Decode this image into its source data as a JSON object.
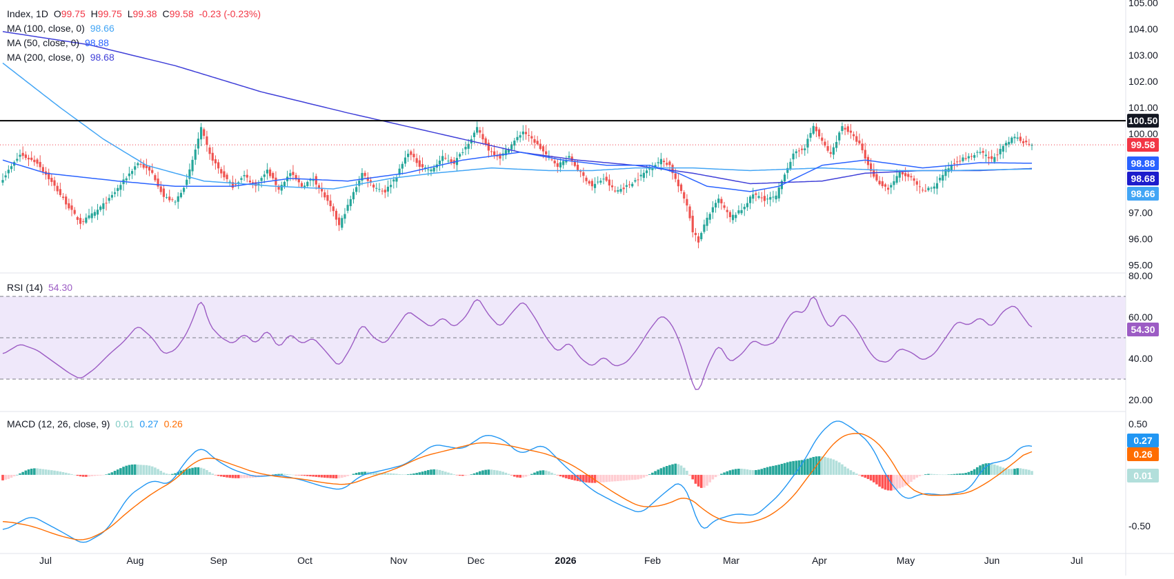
{
  "colors": {
    "up": "#26a69a",
    "down": "#ef5350",
    "ma100": "#42a5f5",
    "ma50": "#2962ff",
    "ma200": "#3f3fd8",
    "rsi": "#9c5cc4",
    "rsi_band": "#efe8fa",
    "macd": "#2196f3",
    "signal": "#ff6d00",
    "resistance": "#000000",
    "last_price": "#f23645",
    "hist_pos_strong": "#26a69a",
    "hist_pos_weak": "#b2dfdb",
    "hist_neg_strong": "#ff5252",
    "hist_neg_weak": "#ffcdd2"
  },
  "legend": {
    "symbol": "Index, 1D",
    "o_label": "O",
    "o_value": "99.75",
    "h_label": "H",
    "h_value": "99.75",
    "l_label": "L",
    "l_value": "99.38",
    "c_label": "C",
    "c_value": "99.58",
    "change": "-0.23 (-0.23%)",
    "ma100_label": "MA (100, close, 0)",
    "ma100_value": "98.66",
    "ma50_label": "MA (50, close, 0)",
    "ma50_value": "98.88",
    "ma200_label": "MA (200, close, 0)",
    "ma200_value": "98.68",
    "rsi_label": "RSI (14)",
    "rsi_value": "54.30",
    "macd_label": "MACD (12, 26, close, 9)",
    "macd_hist_value": "0.01",
    "macd_value": "0.27",
    "signal_value": "0.26"
  },
  "chart_data": {
    "type": "candlestick",
    "price_axis": {
      "ticks": [
        "105.00",
        "104.00",
        "103.00",
        "102.00",
        "101.00",
        "100.00",
        "97.00",
        "96.00",
        "95.00"
      ],
      "ylim": [
        94.8,
        105.0
      ]
    },
    "rsi_axis": {
      "ticks": [
        "80.00",
        "60.00",
        "40.00",
        "20.00"
      ],
      "ylim": [
        15,
        80
      ],
      "band": [
        30,
        70
      ],
      "mid": 50
    },
    "macd_axis": {
      "ticks": [
        "0.50",
        "-0.50"
      ],
      "ylim": [
        -0.75,
        0.6
      ]
    },
    "x_ticks": [
      "Jul",
      "Aug",
      "Sep",
      "Oct",
      "Nov",
      "Dec",
      "2026",
      "Feb",
      "Mar",
      "Apr",
      "May",
      "Jun",
      "Jul"
    ],
    "resistance": 100.5,
    "last_close": 99.58,
    "tags": {
      "resistance": "100.50",
      "last": "99.58",
      "ma50": "98.88",
      "ma200": "98.68",
      "ma100": "98.66",
      "rsi": "54.30",
      "macd": "0.27",
      "signal": "0.26",
      "hist": "0.01"
    },
    "close_anchors": [
      [
        0,
        98.3
      ],
      [
        6,
        99.2
      ],
      [
        12,
        98.9
      ],
      [
        18,
        98.0
      ],
      [
        23,
        97.2
      ],
      [
        27,
        96.6
      ],
      [
        32,
        97.0
      ],
      [
        37,
        97.5
      ],
      [
        42,
        98.2
      ],
      [
        47,
        98.9
      ],
      [
        52,
        98.5
      ],
      [
        56,
        97.6
      ],
      [
        60,
        97.4
      ],
      [
        64,
        98.2
      ],
      [
        67,
        99.4
      ],
      [
        69,
        100.2
      ],
      [
        72,
        99.2
      ],
      [
        76,
        98.5
      ],
      [
        80,
        98.0
      ],
      [
        84,
        98.4
      ],
      [
        88,
        98.0
      ],
      [
        92,
        98.6
      ],
      [
        96,
        97.9
      ],
      [
        100,
        98.5
      ],
      [
        104,
        98.0
      ],
      [
        108,
        98.3
      ],
      [
        112,
        97.6
      ],
      [
        115,
        97.0
      ],
      [
        117,
        96.5
      ],
      [
        121,
        97.5
      ],
      [
        125,
        98.5
      ],
      [
        129,
        98.0
      ],
      [
        133,
        97.8
      ],
      [
        137,
        98.4
      ],
      [
        141,
        99.3
      ],
      [
        145,
        98.8
      ],
      [
        149,
        98.6
      ],
      [
        153,
        99.1
      ],
      [
        157,
        98.9
      ],
      [
        161,
        99.5
      ],
      [
        165,
        100.2
      ],
      [
        169,
        99.4
      ],
      [
        173,
        99.1
      ],
      [
        177,
        99.6
      ],
      [
        181,
        100.1
      ],
      [
        185,
        99.7
      ],
      [
        189,
        99.2
      ],
      [
        193,
        98.8
      ],
      [
        197,
        99.1
      ],
      [
        201,
        98.5
      ],
      [
        205,
        98.0
      ],
      [
        209,
        98.3
      ],
      [
        213,
        97.8
      ],
      [
        217,
        98.0
      ],
      [
        221,
        98.3
      ],
      [
        225,
        98.7
      ],
      [
        229,
        99.0
      ],
      [
        232,
        98.8
      ],
      [
        235,
        98.0
      ],
      [
        238,
        97.3
      ],
      [
        240,
        96.3
      ],
      [
        242,
        95.9
      ],
      [
        245,
        96.8
      ],
      [
        249,
        97.5
      ],
      [
        253,
        96.8
      ],
      [
        257,
        97.1
      ],
      [
        261,
        97.7
      ],
      [
        265,
        97.5
      ],
      [
        269,
        97.6
      ],
      [
        272,
        98.5
      ],
      [
        275,
        99.2
      ],
      [
        279,
        99.5
      ],
      [
        282,
        100.3
      ],
      [
        285,
        99.7
      ],
      [
        288,
        99.2
      ],
      [
        292,
        100.3
      ],
      [
        295,
        100.0
      ],
      [
        298,
        99.6
      ],
      [
        301,
        98.8
      ],
      [
        304,
        98.2
      ],
      [
        308,
        97.9
      ],
      [
        312,
        98.5
      ],
      [
        316,
        98.3
      ],
      [
        320,
        97.8
      ],
      [
        324,
        98.0
      ],
      [
        328,
        98.6
      ],
      [
        332,
        99.0
      ],
      [
        336,
        99.1
      ],
      [
        340,
        99.3
      ],
      [
        344,
        99.0
      ],
      [
        348,
        99.5
      ],
      [
        352,
        99.9
      ],
      [
        355,
        99.7
      ],
      [
        358,
        99.58
      ]
    ],
    "ma50_anchors": [
      [
        0,
        99.0
      ],
      [
        15,
        98.5
      ],
      [
        40,
        98.2
      ],
      [
        60,
        98.0
      ],
      [
        80,
        98.0
      ],
      [
        100,
        98.3
      ],
      [
        120,
        98.2
      ],
      [
        140,
        98.5
      ],
      [
        160,
        99.0
      ],
      [
        180,
        99.3
      ],
      [
        195,
        99.0
      ],
      [
        210,
        98.8
      ],
      [
        225,
        98.8
      ],
      [
        235,
        98.5
      ],
      [
        245,
        98.0
      ],
      [
        260,
        97.8
      ],
      [
        270,
        98.0
      ],
      [
        285,
        98.8
      ],
      [
        300,
        99.0
      ],
      [
        320,
        98.7
      ],
      [
        340,
        98.9
      ],
      [
        358,
        98.88
      ]
    ],
    "ma100_anchors": [
      [
        0,
        102.7
      ],
      [
        20,
        101.0
      ],
      [
        35,
        99.8
      ],
      [
        50,
        98.8
      ],
      [
        70,
        98.2
      ],
      [
        95,
        98.0
      ],
      [
        115,
        97.9
      ],
      [
        135,
        98.3
      ],
      [
        150,
        98.5
      ],
      [
        170,
        98.7
      ],
      [
        190,
        98.6
      ],
      [
        205,
        98.6
      ],
      [
        220,
        98.7
      ],
      [
        240,
        98.7
      ],
      [
        260,
        98.6
      ],
      [
        285,
        98.7
      ],
      [
        310,
        98.6
      ],
      [
        330,
        98.6
      ],
      [
        358,
        98.66
      ]
    ],
    "ma200_anchors": [
      [
        0,
        103.9
      ],
      [
        30,
        103.4
      ],
      [
        60,
        102.6
      ],
      [
        90,
        101.6
      ],
      [
        120,
        100.8
      ],
      [
        140,
        100.3
      ],
      [
        160,
        99.8
      ],
      [
        180,
        99.3
      ],
      [
        200,
        99.0
      ],
      [
        220,
        98.8
      ],
      [
        240,
        98.5
      ],
      [
        260,
        98.1
      ],
      [
        285,
        98.2
      ],
      [
        300,
        98.5
      ],
      [
        320,
        98.6
      ],
      [
        340,
        98.6
      ],
      [
        358,
        98.68
      ]
    ],
    "rsi_anchors": [
      [
        0,
        42
      ],
      [
        6,
        47
      ],
      [
        12,
        44
      ],
      [
        18,
        38
      ],
      [
        23,
        33
      ],
      [
        27,
        30
      ],
      [
        32,
        35
      ],
      [
        37,
        42
      ],
      [
        42,
        48
      ],
      [
        47,
        56
      ],
      [
        52,
        50
      ],
      [
        56,
        42
      ],
      [
        60,
        44
      ],
      [
        64,
        52
      ],
      [
        67,
        62
      ],
      [
        69,
        70
      ],
      [
        72,
        56
      ],
      [
        76,
        50
      ],
      [
        80,
        47
      ],
      [
        84,
        52
      ],
      [
        88,
        47
      ],
      [
        92,
        54
      ],
      [
        96,
        45
      ],
      [
        100,
        52
      ],
      [
        104,
        47
      ],
      [
        108,
        50
      ],
      [
        112,
        44
      ],
      [
        115,
        39
      ],
      [
        117,
        36
      ],
      [
        121,
        45
      ],
      [
        125,
        57
      ],
      [
        129,
        50
      ],
      [
        133,
        47
      ],
      [
        137,
        55
      ],
      [
        141,
        63
      ],
      [
        145,
        59
      ],
      [
        149,
        55
      ],
      [
        153,
        60
      ],
      [
        157,
        55
      ],
      [
        161,
        60
      ],
      [
        165,
        70
      ],
      [
        169,
        61
      ],
      [
        173,
        55
      ],
      [
        177,
        62
      ],
      [
        181,
        68
      ],
      [
        185,
        60
      ],
      [
        189,
        50
      ],
      [
        193,
        43
      ],
      [
        197,
        48
      ],
      [
        201,
        40
      ],
      [
        205,
        36
      ],
      [
        209,
        41
      ],
      [
        213,
        36
      ],
      [
        217,
        38
      ],
      [
        221,
        45
      ],
      [
        225,
        54
      ],
      [
        229,
        61
      ],
      [
        232,
        58
      ],
      [
        235,
        50
      ],
      [
        238,
        37
      ],
      [
        240,
        27
      ],
      [
        242,
        23
      ],
      [
        245,
        36
      ],
      [
        249,
        47
      ],
      [
        253,
        38
      ],
      [
        257,
        42
      ],
      [
        261,
        49
      ],
      [
        265,
        46
      ],
      [
        269,
        48
      ],
      [
        272,
        57
      ],
      [
        275,
        63
      ],
      [
        279,
        62
      ],
      [
        282,
        72
      ],
      [
        285,
        61
      ],
      [
        288,
        54
      ],
      [
        292,
        62
      ],
      [
        295,
        58
      ],
      [
        298,
        52
      ],
      [
        301,
        44
      ],
      [
        304,
        39
      ],
      [
        308,
        38
      ],
      [
        312,
        45
      ],
      [
        316,
        43
      ],
      [
        320,
        39
      ],
      [
        324,
        42
      ],
      [
        328,
        50
      ],
      [
        332,
        58
      ],
      [
        336,
        56
      ],
      [
        340,
        60
      ],
      [
        344,
        55
      ],
      [
        348,
        63
      ],
      [
        352,
        66
      ],
      [
        355,
        60
      ],
      [
        358,
        54.3
      ]
    ],
    "macd_anchors": [
      [
        0,
        -0.55
      ],
      [
        10,
        -0.4
      ],
      [
        20,
        -0.55
      ],
      [
        28,
        -0.68
      ],
      [
        36,
        -0.55
      ],
      [
        44,
        -0.2
      ],
      [
        52,
        -0.05
      ],
      [
        58,
        -0.1
      ],
      [
        64,
        0.15
      ],
      [
        69,
        0.28
      ],
      [
        74,
        0.15
      ],
      [
        80,
        0.05
      ],
      [
        88,
        -0.02
      ],
      [
        96,
        0.0
      ],
      [
        104,
        -0.05
      ],
      [
        112,
        -0.12
      ],
      [
        118,
        -0.15
      ],
      [
        125,
        0.0
      ],
      [
        133,
        0.05
      ],
      [
        140,
        0.1
      ],
      [
        150,
        0.3
      ],
      [
        160,
        0.25
      ],
      [
        168,
        0.4
      ],
      [
        174,
        0.35
      ],
      [
        180,
        0.2
      ],
      [
        188,
        0.3
      ],
      [
        195,
        0.1
      ],
      [
        205,
        -0.15
      ],
      [
        215,
        -0.3
      ],
      [
        222,
        -0.38
      ],
      [
        230,
        -0.18
      ],
      [
        236,
        -0.05
      ],
      [
        240,
        -0.3
      ],
      [
        243,
        -0.58
      ],
      [
        247,
        -0.45
      ],
      [
        255,
        -0.38
      ],
      [
        262,
        -0.4
      ],
      [
        270,
        -0.2
      ],
      [
        278,
        0.1
      ],
      [
        284,
        0.4
      ],
      [
        290,
        0.55
      ],
      [
        296,
        0.45
      ],
      [
        302,
        0.3
      ],
      [
        308,
        -0.05
      ],
      [
        314,
        -0.25
      ],
      [
        320,
        -0.18
      ],
      [
        328,
        -0.2
      ],
      [
        336,
        -0.15
      ],
      [
        342,
        0.1
      ],
      [
        350,
        0.15
      ],
      [
        355,
        0.3
      ],
      [
        358,
        0.27
      ]
    ],
    "signal_anchors": [
      [
        0,
        -0.45
      ],
      [
        10,
        -0.5
      ],
      [
        20,
        -0.6
      ],
      [
        28,
        -0.65
      ],
      [
        36,
        -0.55
      ],
      [
        44,
        -0.35
      ],
      [
        52,
        -0.18
      ],
      [
        60,
        -0.05
      ],
      [
        66,
        0.12
      ],
      [
        72,
        0.18
      ],
      [
        80,
        0.1
      ],
      [
        88,
        0.02
      ],
      [
        96,
        -0.02
      ],
      [
        104,
        -0.04
      ],
      [
        112,
        -0.08
      ],
      [
        120,
        -0.1
      ],
      [
        128,
        -0.02
      ],
      [
        136,
        0.05
      ],
      [
        146,
        0.18
      ],
      [
        156,
        0.25
      ],
      [
        166,
        0.32
      ],
      [
        174,
        0.3
      ],
      [
        182,
        0.25
      ],
      [
        190,
        0.2
      ],
      [
        198,
        0.1
      ],
      [
        206,
        -0.05
      ],
      [
        214,
        -0.2
      ],
      [
        222,
        -0.32
      ],
      [
        230,
        -0.3
      ],
      [
        238,
        -0.2
      ],
      [
        244,
        -0.35
      ],
      [
        250,
        -0.45
      ],
      [
        258,
        -0.48
      ],
      [
        266,
        -0.42
      ],
      [
        274,
        -0.25
      ],
      [
        282,
        0.05
      ],
      [
        290,
        0.35
      ],
      [
        296,
        0.42
      ],
      [
        302,
        0.38
      ],
      [
        308,
        0.2
      ],
      [
        314,
        -0.1
      ],
      [
        320,
        -0.2
      ],
      [
        328,
        -0.2
      ],
      [
        336,
        -0.18
      ],
      [
        344,
        -0.05
      ],
      [
        350,
        0.08
      ],
      [
        358,
        0.26
      ]
    ]
  }
}
